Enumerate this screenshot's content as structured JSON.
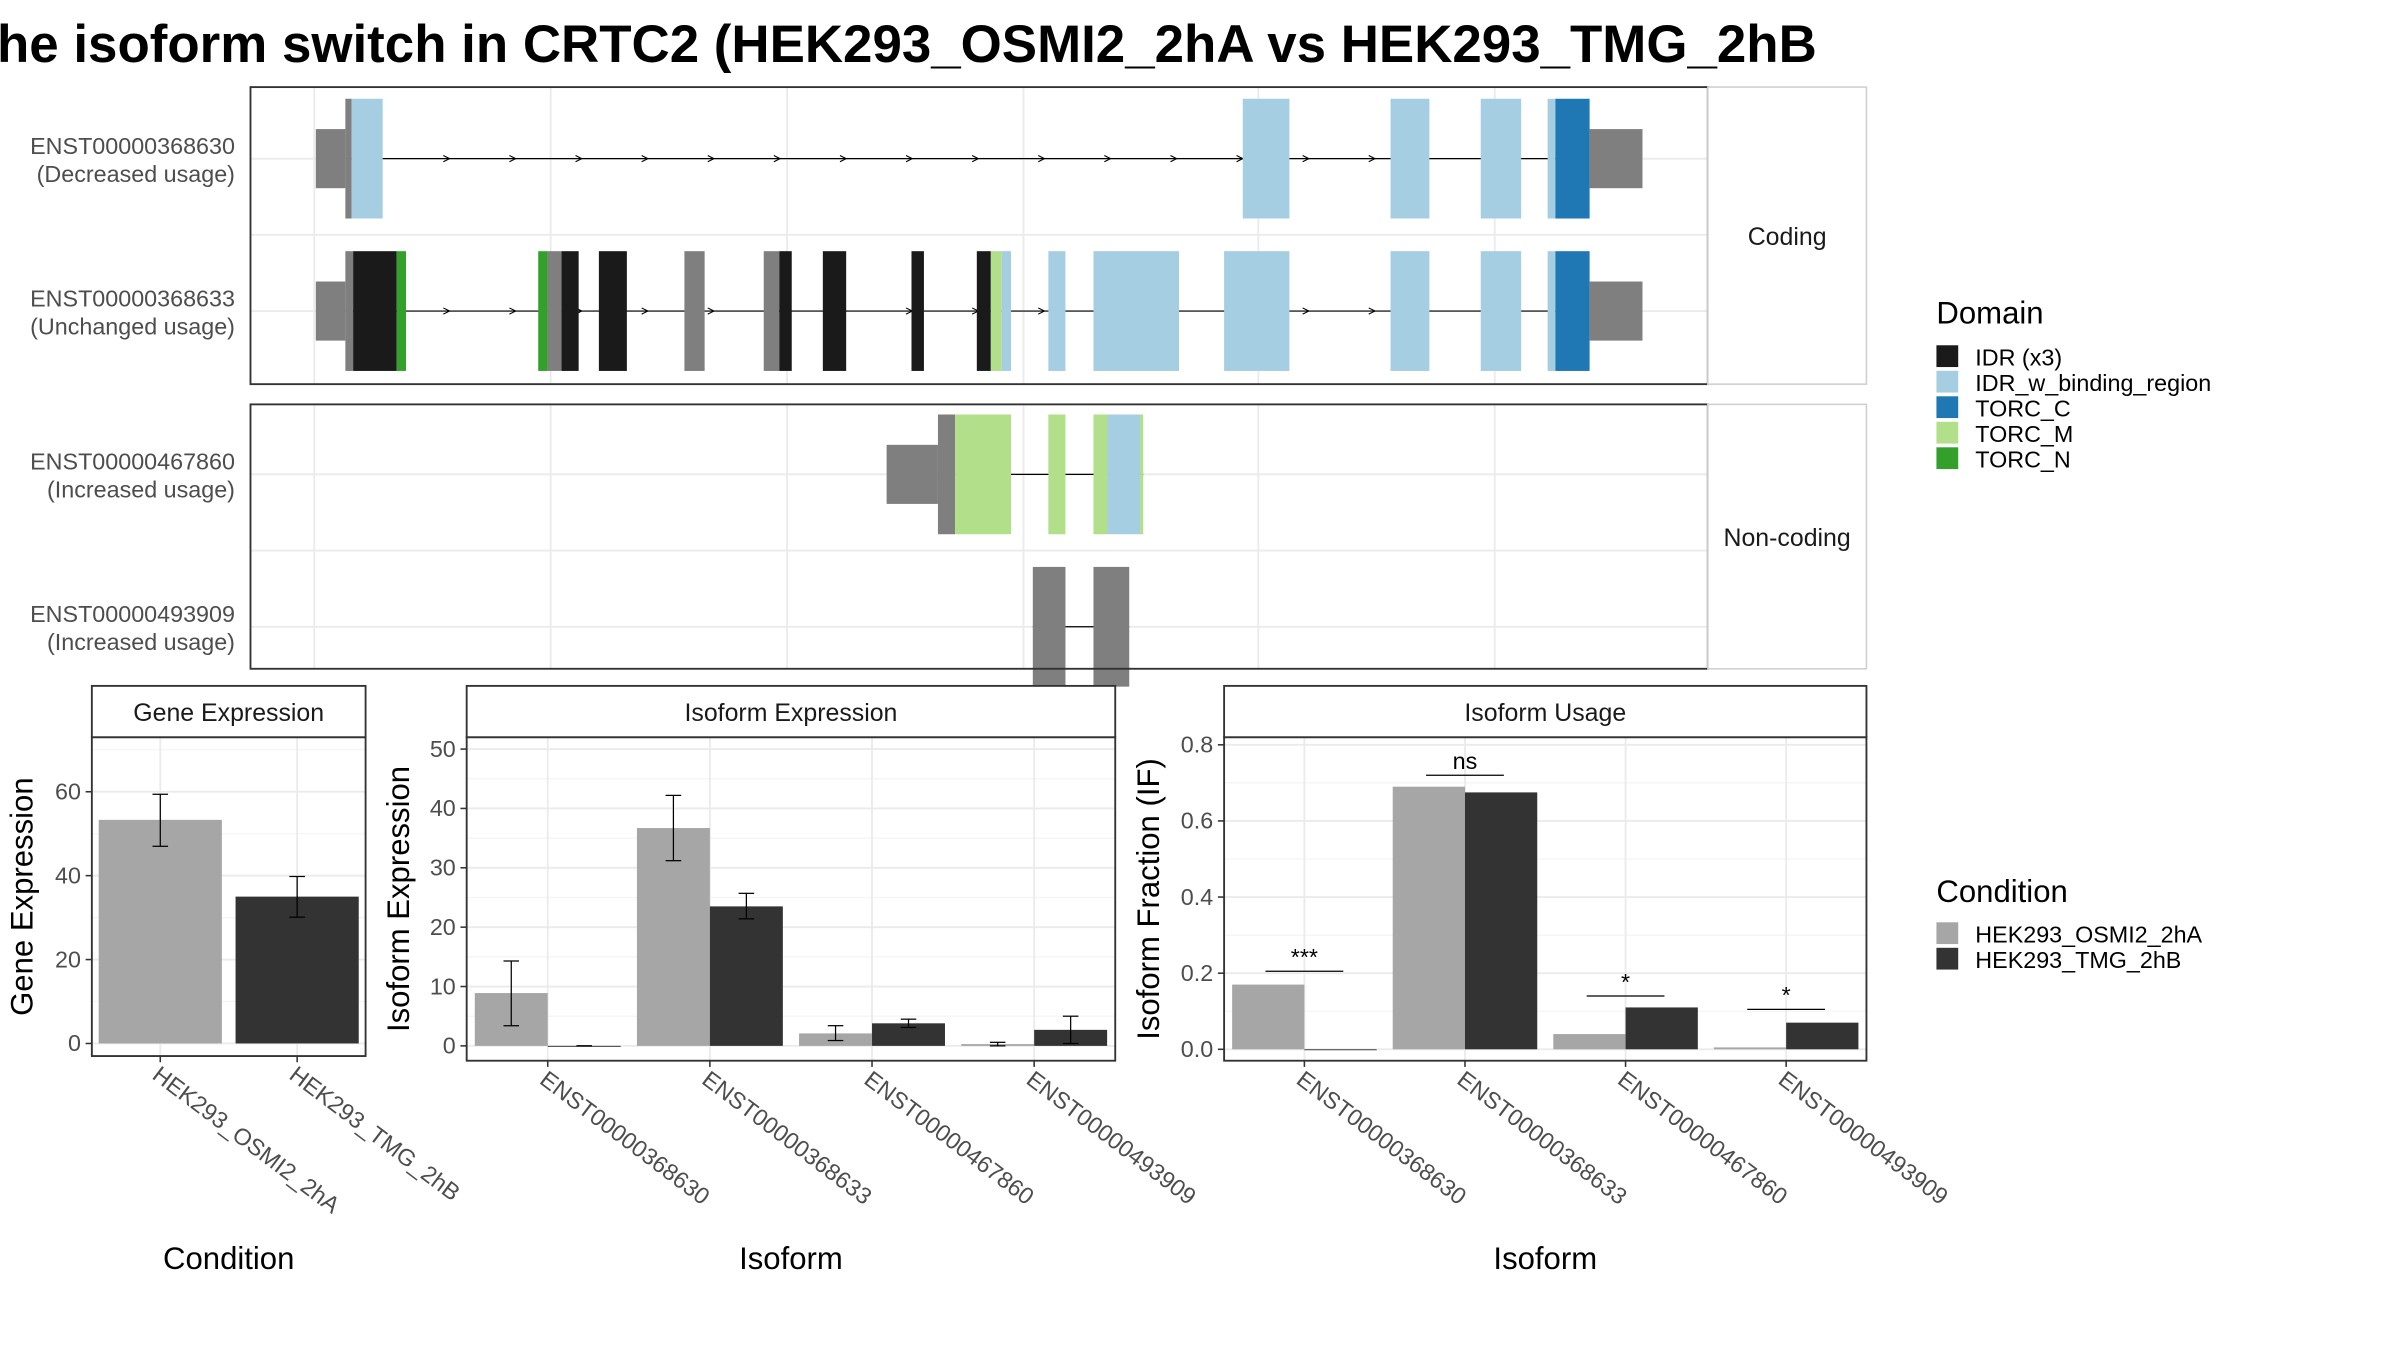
{
  "title": "he isoform switch in CRTC2 (HEK293_OSMI2_2hA vs HEK293_TMG_2hB",
  "colors": {
    "IDR (x3)": "#1a1a1a",
    "IDR_w_binding_region": "#a6cee3",
    "TORC_C": "#1f78b4",
    "TORC_M": "#b2df8a",
    "TORC_N": "#33a02c",
    "utr": "#7f7f7f",
    "cond_a": "#a6a6a6",
    "cond_b": "#333333",
    "grid": "#ebebeb",
    "strip": "#ffffff"
  },
  "structure": {
    "groups": [
      {
        "strip": "Coding",
        "transcripts": [
          0,
          1
        ]
      },
      {
        "strip": "Non-coding",
        "transcripts": [
          2,
          3
        ]
      }
    ],
    "transcripts": [
      {
        "id": "ENST00000368630",
        "note": "(Decreased usage)",
        "intron": [
          222,
          1005
        ],
        "arrows": true,
        "blocks": [
          {
            "s": 203,
            "e": 222,
            "type": "utr"
          },
          {
            "s": 222,
            "e": 226,
            "type": "cds",
            "domain": "utr"
          },
          {
            "s": 226,
            "e": 246,
            "type": "cds",
            "domain": "IDR_w_binding_region"
          },
          {
            "s": 799,
            "e": 829,
            "type": "cds",
            "domain": "IDR_w_binding_region"
          },
          {
            "s": 894,
            "e": 919,
            "type": "cds",
            "domain": "IDR_w_binding_region"
          },
          {
            "s": 952,
            "e": 978,
            "type": "cds",
            "domain": "IDR_w_binding_region"
          },
          {
            "s": 995,
            "e": 1000,
            "type": "cds",
            "domain": "IDR_w_binding_region"
          },
          {
            "s": 1000,
            "e": 1022,
            "type": "cds",
            "domain": "TORC_C"
          },
          {
            "s": 1022,
            "e": 1056,
            "type": "utr"
          }
        ]
      },
      {
        "id": "ENST00000368633",
        "note": "(Unchanged usage)",
        "intron": [
          222,
          1005
        ],
        "arrows": true,
        "blocks": [
          {
            "s": 203,
            "e": 222,
            "type": "utr"
          },
          {
            "s": 222,
            "e": 227,
            "type": "cds",
            "domain": "utr"
          },
          {
            "s": 227,
            "e": 255,
            "type": "cds",
            "domain": "IDR (x3)"
          },
          {
            "s": 255,
            "e": 261,
            "type": "cds",
            "domain": "TORC_N"
          },
          {
            "s": 346,
            "e": 352,
            "type": "cds",
            "domain": "TORC_N"
          },
          {
            "s": 352,
            "e": 361,
            "type": "cds",
            "domain": "utr"
          },
          {
            "s": 361,
            "e": 372,
            "type": "cds",
            "domain": "IDR (x3)"
          },
          {
            "s": 385,
            "e": 403,
            "type": "cds",
            "domain": "IDR (x3)"
          },
          {
            "s": 440,
            "e": 453,
            "type": "cds",
            "domain": "utr"
          },
          {
            "s": 491,
            "e": 501,
            "type": "cds",
            "domain": "utr"
          },
          {
            "s": 501,
            "e": 509,
            "type": "cds",
            "domain": "IDR (x3)"
          },
          {
            "s": 529,
            "e": 544,
            "type": "cds",
            "domain": "IDR (x3)"
          },
          {
            "s": 586,
            "e": 594,
            "type": "cds",
            "domain": "IDR (x3)"
          },
          {
            "s": 628,
            "e": 637,
            "type": "cds",
            "domain": "IDR (x3)"
          },
          {
            "s": 637,
            "e": 644,
            "type": "cds",
            "domain": "TORC_M"
          },
          {
            "s": 644,
            "e": 650,
            "type": "cds",
            "domain": "IDR_w_binding_region"
          },
          {
            "s": 674,
            "e": 685,
            "type": "cds",
            "domain": "IDR_w_binding_region"
          },
          {
            "s": 703,
            "e": 758,
            "type": "cds",
            "domain": "IDR_w_binding_region"
          },
          {
            "s": 787,
            "e": 829,
            "type": "cds",
            "domain": "IDR_w_binding_region"
          },
          {
            "s": 894,
            "e": 919,
            "type": "cds",
            "domain": "IDR_w_binding_region"
          },
          {
            "s": 952,
            "e": 978,
            "type": "cds",
            "domain": "IDR_w_binding_region"
          },
          {
            "s": 995,
            "e": 1000,
            "type": "cds",
            "domain": "IDR_w_binding_region"
          },
          {
            "s": 1000,
            "e": 1022,
            "type": "cds",
            "domain": "TORC_C"
          },
          {
            "s": 1022,
            "e": 1056,
            "type": "utr"
          }
        ]
      },
      {
        "id": "ENST00000467860",
        "note": "(Increased usage)",
        "intron": [
          603,
          735
        ],
        "arrows": false,
        "blocks": [
          {
            "s": 570,
            "e": 603,
            "type": "utr"
          },
          {
            "s": 603,
            "e": 614,
            "type": "cds",
            "domain": "utr"
          },
          {
            "s": 614,
            "e": 650,
            "type": "cds",
            "domain": "TORC_M"
          },
          {
            "s": 674,
            "e": 685,
            "type": "cds",
            "domain": "TORC_M"
          },
          {
            "s": 703,
            "e": 712,
            "type": "cds",
            "domain": "TORC_M"
          },
          {
            "s": 712,
            "e": 733,
            "type": "cds",
            "domain": "IDR_w_binding_region"
          },
          {
            "s": 733,
            "e": 735,
            "type": "cds",
            "domain": "TORC_M"
          }
        ]
      },
      {
        "id": "ENST00000493909",
        "note": "(Increased usage)",
        "intron": [
          664,
          726
        ],
        "arrows": false,
        "blocks": [
          {
            "s": 664,
            "e": 685,
            "type": "cds",
            "domain": "utr"
          },
          {
            "s": 703,
            "e": 726,
            "type": "cds",
            "domain": "utr"
          }
        ]
      }
    ]
  },
  "legends": {
    "domain": {
      "title": "Domain",
      "items": [
        "IDR (x3)",
        "IDR_w_binding_region",
        "TORC_C",
        "TORC_M",
        "TORC_N"
      ]
    },
    "condition": {
      "title": "Condition",
      "items": [
        "HEK293_OSMI2_2hA",
        "HEK293_TMG_2hB"
      ]
    }
  },
  "chart_data": [
    {
      "type": "bar",
      "title": "Gene Expression",
      "xlabel": "Condition",
      "ylabel": "Gene Expression",
      "ylim": [
        -3,
        73
      ],
      "yticks": [
        0,
        20,
        40,
        60
      ],
      "categories": [
        "HEK293_OSMI2_2hA",
        "HEK293_TMG_2hB"
      ],
      "values": [
        53.3,
        35.0
      ],
      "errors": [
        [
          47.0,
          59.4
        ],
        [
          30.1,
          39.8
        ]
      ],
      "grid": true
    },
    {
      "type": "bar",
      "title": "Isoform Expression",
      "xlabel": "Isoform",
      "ylabel": "Isoform Expression",
      "ylim": [
        -2.5,
        52
      ],
      "yticks": [
        0,
        10,
        20,
        30,
        40,
        50
      ],
      "categories": [
        "ENST00000368630",
        "ENST00000368633",
        "ENST00000467860",
        "ENST00000493909"
      ],
      "series": [
        {
          "name": "HEK293_OSMI2_2hA",
          "values": [
            8.9,
            36.7,
            2.1,
            0.3
          ],
          "errors": [
            [
              3.4,
              14.3
            ],
            [
              31.2,
              42.2
            ],
            [
              0.9,
              3.4
            ],
            [
              0.0,
              0.6
            ]
          ]
        },
        {
          "name": "HEK293_TMG_2hB",
          "values": [
            0.0,
            23.5,
            3.8,
            2.7
          ],
          "errors": [
            [
              0.0,
              0.0
            ],
            [
              21.4,
              25.7
            ],
            [
              3.1,
              4.5
            ],
            [
              0.4,
              5.0
            ]
          ]
        }
      ],
      "grid": true
    },
    {
      "type": "bar",
      "title": "Isoform Usage",
      "xlabel": "Isoform",
      "ylabel": "Isoform Fraction (IF)",
      "ylim": [
        -0.03,
        0.82
      ],
      "yticks": [
        0.0,
        0.2,
        0.4,
        0.6,
        0.8
      ],
      "ytick_labels": [
        "0.0",
        "0.2",
        "0.4",
        "0.6",
        "0.8"
      ],
      "categories": [
        "ENST00000368630",
        "ENST00000368633",
        "ENST00000467860",
        "ENST00000493909"
      ],
      "series": [
        {
          "name": "HEK293_OSMI2_2hA",
          "values": [
            0.17,
            0.69,
            0.04,
            0.005
          ]
        },
        {
          "name": "HEK293_TMG_2hB",
          "values": [
            0.0,
            0.675,
            0.11,
            0.07
          ]
        }
      ],
      "significance": [
        {
          "label": "***",
          "y": 0.205
        },
        {
          "label": "ns",
          "y": 0.72
        },
        {
          "label": "*",
          "y": 0.14
        },
        {
          "label": "*",
          "y": 0.105
        }
      ],
      "grid": true
    }
  ]
}
